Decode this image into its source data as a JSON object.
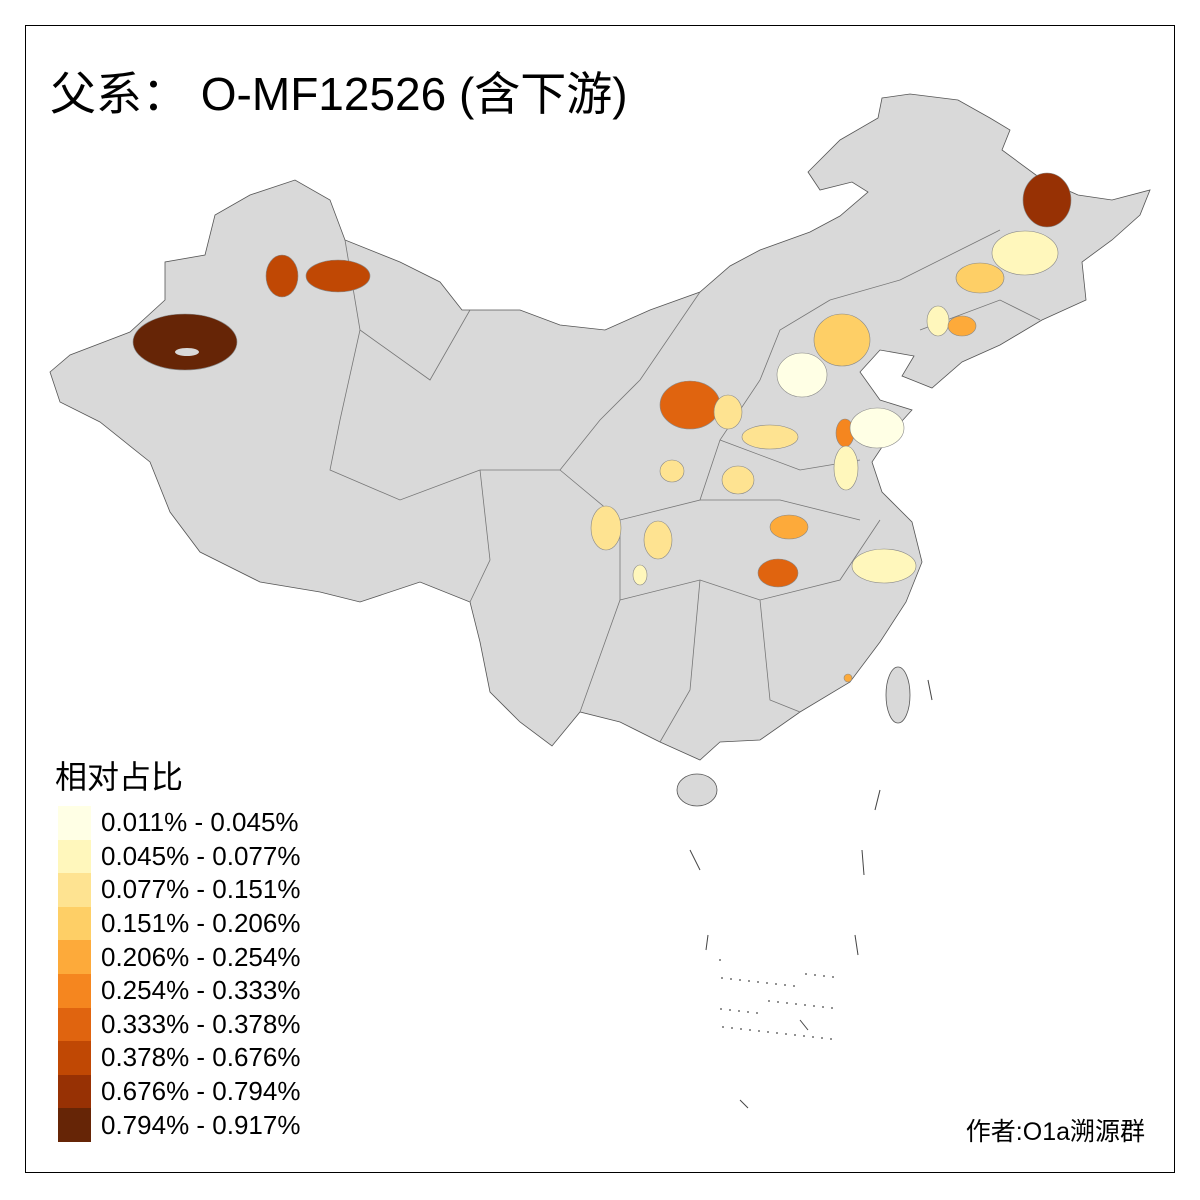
{
  "title": "父系： O-MF12526 (含下游)",
  "legend": {
    "title": "相对占比",
    "items": [
      {
        "label": "0.011% - 0.045%",
        "color": "#FFFFE5"
      },
      {
        "label": "0.045% - 0.077%",
        "color": "#FFF7BC"
      },
      {
        "label": "0.077% - 0.151%",
        "color": "#FEE391"
      },
      {
        "label": "0.151% - 0.206%",
        "color": "#FECF66"
      },
      {
        "label": "0.206% - 0.254%",
        "color": "#FDAA3A"
      },
      {
        "label": "0.254% - 0.333%",
        "color": "#F5861F"
      },
      {
        "label": "0.333% - 0.378%",
        "color": "#E0640F"
      },
      {
        "label": "0.378% - 0.676%",
        "color": "#C04804"
      },
      {
        "label": "0.676% - 0.794%",
        "color": "#973104"
      },
      {
        "label": "0.794% - 0.917%",
        "color": "#662506"
      }
    ]
  },
  "base_fill": "#D9D9D9",
  "credit": "作者:O1a溯源群"
}
